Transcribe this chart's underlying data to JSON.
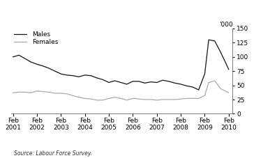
{
  "title": "",
  "source_text": "Source: Labour Force Survey.",
  "y_label": "'000",
  "legend_males": "Males",
  "legend_females": "Females",
  "ylim": [
    0,
    150
  ],
  "yticks": [
    0,
    25,
    50,
    75,
    100,
    125,
    150
  ],
  "males_x": [
    2001.083,
    2001.33,
    2001.58,
    2001.83,
    2002.083,
    2002.33,
    2002.58,
    2002.83,
    2003.083,
    2003.33,
    2003.58,
    2003.83,
    2004.083,
    2004.33,
    2004.58,
    2004.83,
    2005.083,
    2005.33,
    2005.58,
    2005.83,
    2006.083,
    2006.33,
    2006.58,
    2006.83,
    2007.083,
    2007.33,
    2007.58,
    2007.83,
    2008.083,
    2008.33,
    2008.58,
    2008.83,
    2009.083,
    2009.25,
    2009.5,
    2009.75,
    2010.083
  ],
  "males_y": [
    100,
    103,
    97,
    91,
    87,
    84,
    80,
    75,
    70,
    68,
    67,
    65,
    68,
    67,
    63,
    60,
    55,
    58,
    55,
    52,
    57,
    57,
    54,
    56,
    55,
    59,
    57,
    54,
    52,
    49,
    47,
    42,
    70,
    130,
    128,
    108,
    78
  ],
  "females_x": [
    2001.083,
    2001.33,
    2001.58,
    2001.83,
    2002.083,
    2002.33,
    2002.58,
    2002.83,
    2003.083,
    2003.33,
    2003.58,
    2003.83,
    2004.083,
    2004.33,
    2004.58,
    2004.83,
    2005.083,
    2005.33,
    2005.58,
    2005.83,
    2006.083,
    2006.33,
    2006.58,
    2006.83,
    2007.083,
    2007.33,
    2007.58,
    2007.83,
    2008.083,
    2008.33,
    2008.58,
    2008.83,
    2009.083,
    2009.25,
    2009.5,
    2009.75,
    2010.083
  ],
  "females_y": [
    37,
    38,
    38,
    37,
    40,
    39,
    38,
    36,
    36,
    35,
    32,
    29,
    27,
    26,
    24,
    24,
    27,
    29,
    27,
    24,
    27,
    26,
    25,
    25,
    24,
    25,
    25,
    25,
    26,
    27,
    27,
    27,
    32,
    55,
    58,
    44,
    37
  ],
  "males_color": "#111111",
  "females_color": "#aaaaaa",
  "xtick_positions": [
    2001.083,
    2002.083,
    2003.083,
    2004.083,
    2005.083,
    2006.083,
    2007.083,
    2008.083,
    2009.083,
    2010.083
  ],
  "xtick_labels": [
    "Feb\n2001",
    "Feb\n2002",
    "Feb\n2003",
    "Feb\n2004",
    "Feb\n2005",
    "Feb\n2006",
    "Feb\n2007",
    "Feb\n2008",
    "Feb\n2009",
    "Feb\n2010"
  ],
  "bg_color": "#ffffff",
  "line_width": 0.9
}
